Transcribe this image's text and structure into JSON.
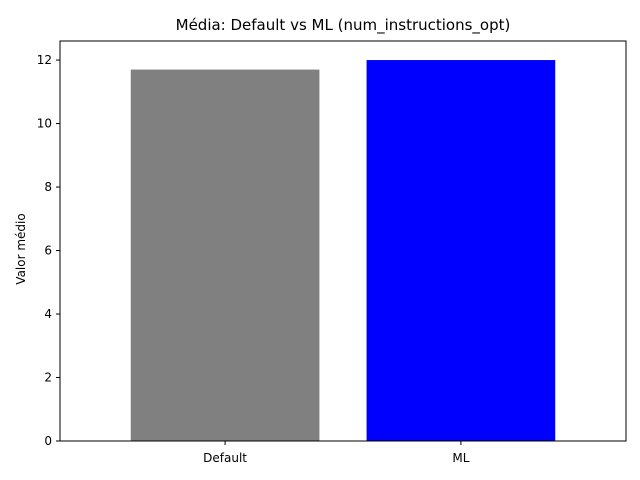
{
  "chart_data": {
    "type": "bar",
    "title": "Média: Default vs ML (num_instructions_opt)",
    "xlabel": "",
    "ylabel": "Valor médio",
    "categories": [
      "Default",
      "ML"
    ],
    "values": [
      11.7,
      12.0
    ],
    "colors": [
      "#808080",
      "#0000ff"
    ],
    "ylim": [
      0,
      12.6
    ],
    "yticks": [
      0,
      2,
      4,
      6,
      8,
      10,
      12
    ],
    "grid": false,
    "legend": "none"
  }
}
